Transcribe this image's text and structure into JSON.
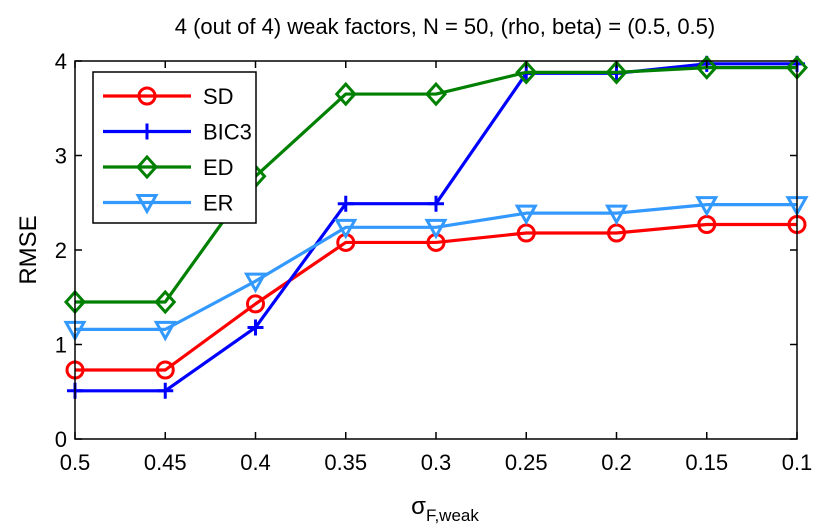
{
  "chart_data": {
    "type": "line",
    "title": "4 (out of 4) weak factors, N = 50, (rho, beta) = (0.5, 0.5)",
    "xlabel_main": "σ",
    "xlabel_sub": "F,weak",
    "ylabel": "RMSE",
    "categories": [
      "0.5",
      "0.45",
      "0.4",
      "0.35",
      "0.3",
      "0.25",
      "0.2",
      "0.15",
      "0.1"
    ],
    "ylim": [
      0,
      4
    ],
    "yticks": [
      "0",
      "1",
      "2",
      "3",
      "4"
    ],
    "series": [
      {
        "name": "SD",
        "color": "#ff0000",
        "marker": "circle",
        "values": [
          0.73,
          0.73,
          1.43,
          2.08,
          2.08,
          2.18,
          2.18,
          2.27,
          2.27
        ]
      },
      {
        "name": "BIC3",
        "color": "#0000ff",
        "marker": "plus",
        "values": [
          0.51,
          0.51,
          1.18,
          2.49,
          2.49,
          3.87,
          3.87,
          3.97,
          3.97
        ]
      },
      {
        "name": "ED",
        "color": "#008000",
        "marker": "diamond",
        "values": [
          1.45,
          1.45,
          2.78,
          3.65,
          3.65,
          3.88,
          3.88,
          3.93,
          3.93
        ]
      },
      {
        "name": "ER",
        "color": "#3399ff",
        "marker": "triangle-down",
        "values": [
          1.16,
          1.16,
          1.67,
          2.24,
          2.24,
          2.39,
          2.39,
          2.48,
          2.48
        ]
      }
    ]
  }
}
